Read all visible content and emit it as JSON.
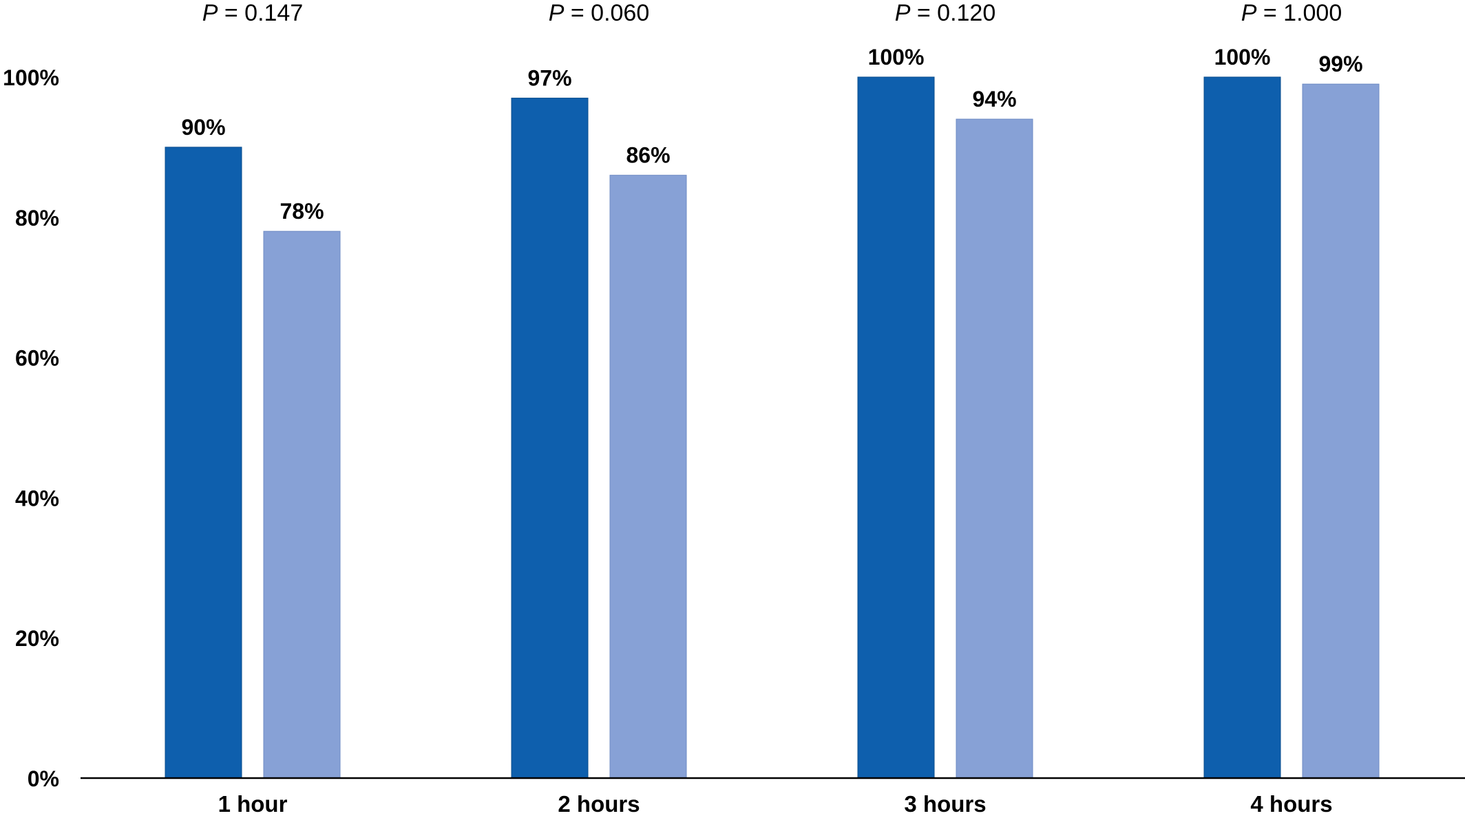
{
  "chart_data": {
    "type": "bar",
    "categories": [
      "1 hour",
      "2 hours",
      "3 hours",
      "4 hours"
    ],
    "series": [
      {
        "values": [
          90,
          97,
          100,
          100
        ],
        "color": "#0e5fad"
      },
      {
        "values": [
          78,
          86,
          94,
          99
        ],
        "color": "#87a1d6"
      }
    ],
    "data_labels": [
      [
        "90%",
        "97%",
        "100%",
        "100%"
      ],
      [
        "78%",
        "86%",
        "94%",
        "99%"
      ]
    ],
    "annotations": [
      {
        "prefix": "P",
        "text": " = 0.147"
      },
      {
        "prefix": "P",
        "text": " = 0.060"
      },
      {
        "prefix": "P",
        "text": " = 0.120"
      },
      {
        "prefix": "P",
        "text": " = 1.000"
      }
    ],
    "y_ticks": [
      "0%",
      "20%",
      "40%",
      "60%",
      "80%",
      "100%"
    ],
    "ylim": [
      0,
      100
    ],
    "grid": false,
    "legend": "none",
    "title": "",
    "xlabel": "",
    "ylabel": ""
  }
}
